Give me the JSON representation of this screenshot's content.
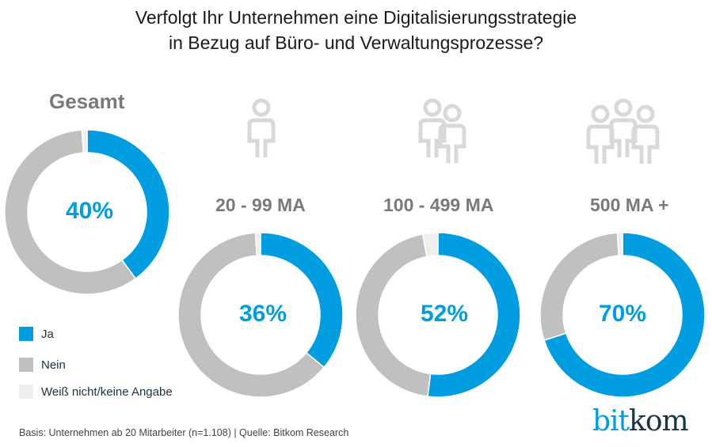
{
  "title": {
    "line1": "Verfolgt Ihr Unternehmen eine Digitalisierungsstrategie",
    "line2": "in Bezug auf Büro- und Verwaltungsprozesse?"
  },
  "colors": {
    "ja": "#009de0",
    "nein": "#c0c0c0",
    "weiss": "#efefef",
    "label": "#7a7a7a",
    "icon": "#d9d9d9"
  },
  "legend": [
    {
      "key": "ja",
      "label": "Ja"
    },
    {
      "key": "nein",
      "label": "Nein"
    },
    {
      "key": "weiss",
      "label": "Weiß nicht/keine Angabe"
    }
  ],
  "footer": "Basis: Unternehmen ab 20 Mitarbeiter (n=1.108) | Quelle: Bitkom Research",
  "logo": {
    "part1": "bit",
    "part2": "kom"
  },
  "chart_data": [
    {
      "type": "pie",
      "title": "Gesamt",
      "center_label": "40%",
      "icon": "none",
      "categories": [
        "Ja",
        "Weiß nicht/keine Angabe",
        "Nein"
      ],
      "values": [
        40,
        1,
        59
      ]
    },
    {
      "type": "pie",
      "title": "20 - 99 MA",
      "center_label": "36%",
      "icon": "person-icon",
      "categories": [
        "Ja",
        "Weiß nicht/keine Angabe",
        "Nein"
      ],
      "values": [
        36,
        1,
        63
      ]
    },
    {
      "type": "pie",
      "title": "100 - 499 MA",
      "center_label": "52%",
      "icon": "two-persons-icon",
      "categories": [
        "Ja",
        "Weiß nicht/keine Angabe",
        "Nein"
      ],
      "values": [
        52,
        3,
        45
      ]
    },
    {
      "type": "pie",
      "title": "500 MA +",
      "center_label": "70%",
      "icon": "group-icon",
      "categories": [
        "Ja",
        "Weiß nicht/keine Angabe",
        "Nein"
      ],
      "values": [
        70,
        1,
        29
      ]
    }
  ]
}
